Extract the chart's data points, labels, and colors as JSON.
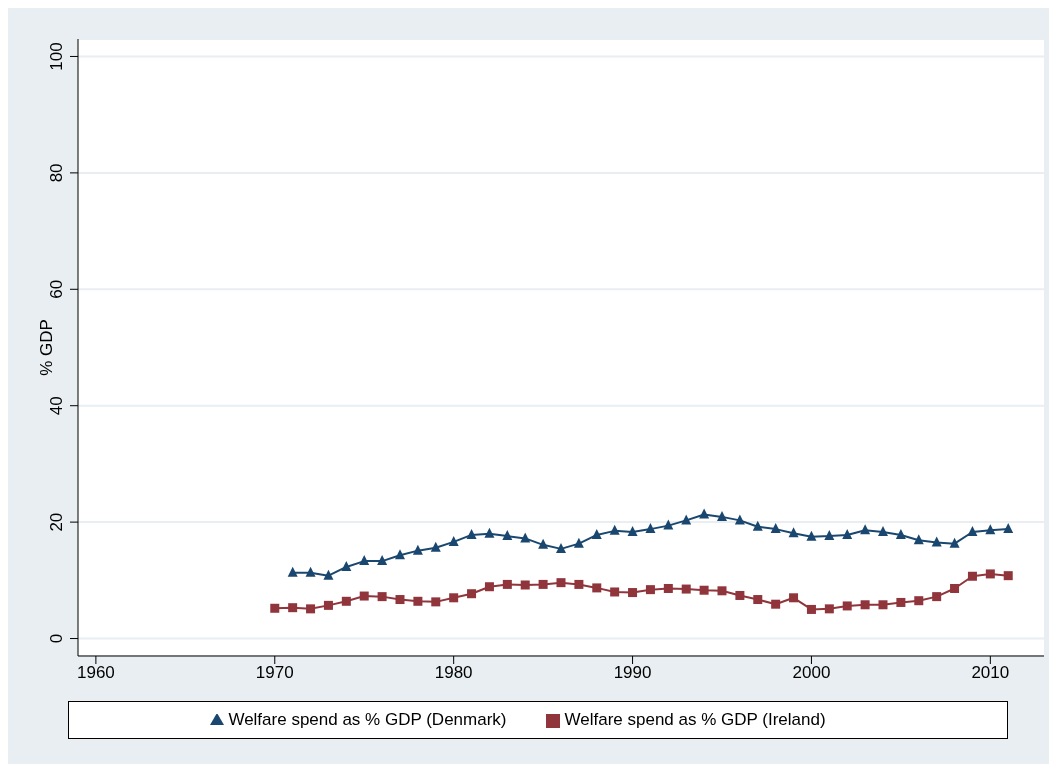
{
  "chart_data": {
    "type": "line",
    "ylabel": "% GDP",
    "xlim": [
      1959,
      2013
    ],
    "xticks": [
      1960,
      1970,
      1980,
      1990,
      2000,
      2010
    ],
    "ylim": [
      -3,
      103
    ],
    "yticks": [
      0,
      20,
      40,
      60,
      80,
      100
    ],
    "grid": "y",
    "legend": "bottom",
    "series": [
      {
        "name": "Welfare spend as % GDP (Denmark)",
        "color": "#1a476f",
        "marker": "triangle",
        "x": [
          1971,
          1972,
          1973,
          1974,
          1975,
          1976,
          1977,
          1978,
          1979,
          1980,
          1981,
          1982,
          1983,
          1984,
          1985,
          1986,
          1987,
          1988,
          1989,
          1990,
          1991,
          1992,
          1993,
          1994,
          1995,
          1996,
          1997,
          1998,
          1999,
          2000,
          2001,
          2002,
          2003,
          2004,
          2005,
          2006,
          2007,
          2008,
          2009,
          2010,
          2011
        ],
        "values": [
          11.3,
          11.3,
          10.8,
          12.3,
          13.3,
          13.3,
          14.3,
          15.1,
          15.6,
          16.6,
          17.8,
          18.0,
          17.6,
          17.2,
          16.1,
          15.4,
          16.3,
          17.8,
          18.5,
          18.3,
          18.8,
          19.4,
          20.3,
          21.3,
          20.9,
          20.3,
          19.2,
          18.8,
          18.1,
          17.5,
          17.6,
          17.8,
          18.6,
          18.3,
          17.8,
          16.9,
          16.5,
          16.3,
          18.3,
          18.6,
          18.8
        ]
      },
      {
        "name": "Welfare spend as % GDP (Ireland)",
        "color": "#90353b",
        "marker": "square",
        "x": [
          1970,
          1971,
          1972,
          1973,
          1974,
          1975,
          1976,
          1977,
          1978,
          1979,
          1980,
          1981,
          1982,
          1983,
          1984,
          1985,
          1986,
          1987,
          1988,
          1989,
          1990,
          1991,
          1992,
          1993,
          1994,
          1995,
          1996,
          1997,
          1998,
          1999,
          2000,
          2001,
          2002,
          2003,
          2004,
          2005,
          2006,
          2007,
          2008,
          2009,
          2010,
          2011
        ],
        "values": [
          5.2,
          5.3,
          5.1,
          5.7,
          6.4,
          7.3,
          7.2,
          6.7,
          6.4,
          6.3,
          7.0,
          7.7,
          8.9,
          9.3,
          9.2,
          9.3,
          9.6,
          9.3,
          8.7,
          8.0,
          7.9,
          8.4,
          8.6,
          8.5,
          8.3,
          8.2,
          7.4,
          6.7,
          5.9,
          7.0,
          5.0,
          5.1,
          5.6,
          5.8,
          5.8,
          6.2,
          6.5,
          7.2,
          8.6,
          10.7,
          11.1,
          10.8
        ]
      }
    ]
  }
}
